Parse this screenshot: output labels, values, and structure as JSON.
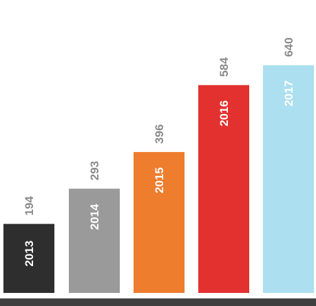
{
  "chart_data": {
    "type": "bar",
    "categories": [
      "2013",
      "2014",
      "2015",
      "2016",
      "2017"
    ],
    "values": [
      194,
      293,
      396,
      584,
      640
    ],
    "colors": [
      "#2e2e2e",
      "#9a9a9a",
      "#ee7d2e",
      "#e2312f",
      "#acdff0"
    ],
    "baseline_color": "#3f3f3f",
    "value_label_color": "#8a8a8a",
    "category_label_color": "#ffffff",
    "category_label_orientation": "vertical",
    "value_label_orientation": "vertical",
    "legend": "none",
    "grid": false,
    "axes_visible": false,
    "ylim": [
      0,
      700
    ]
  }
}
